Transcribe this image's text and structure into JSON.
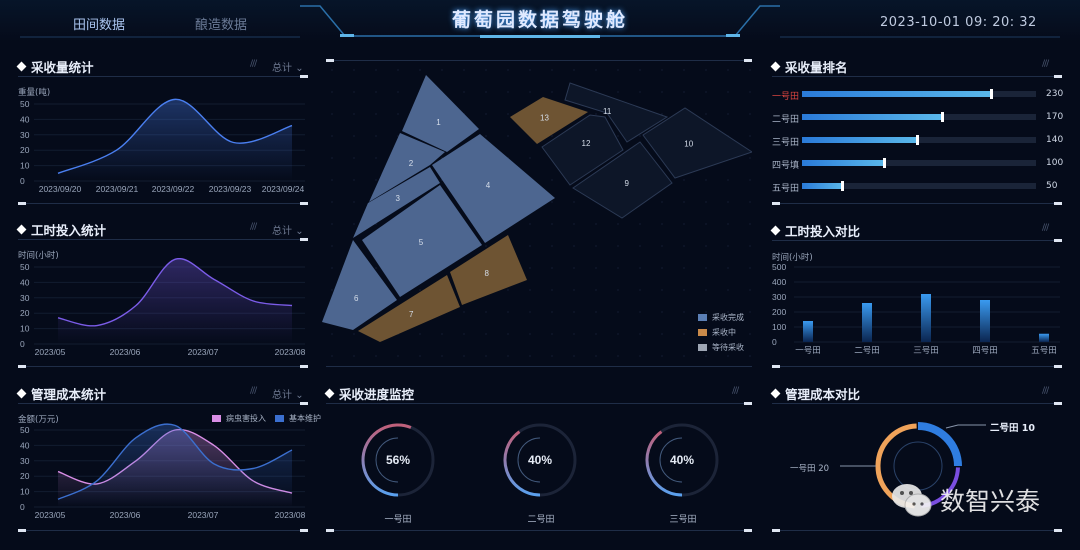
{
  "header": {
    "tabs": [
      "田间数据",
      "酿造数据"
    ],
    "title": "葡萄园数据驾驶舱",
    "datetime": "2023-10-01 09:  20:  32"
  },
  "left": {
    "harvest": {
      "title": "采收量统计",
      "dropdown": "总计",
      "chart_data": {
        "type": "area",
        "ylabel": "重量(吨)",
        "ylim": [
          0,
          50
        ],
        "yticks": [
          0,
          10,
          20,
          30,
          40,
          50
        ],
        "categories": [
          "2023/09/20",
          "2023/09/21",
          "2023/09/22",
          "2023/09/23",
          "2023/09/24"
        ],
        "values": [
          5,
          20,
          53,
          25,
          36
        ],
        "color": "#4a7ff0"
      }
    },
    "hours": {
      "title": "工时投入统计",
      "dropdown": "总计",
      "chart_data": {
        "type": "area",
        "ylabel": "时间(小时)",
        "ylim": [
          0,
          50
        ],
        "yticks": [
          0,
          10,
          20,
          30,
          40,
          50
        ],
        "xticks": [
          "2023/05",
          "2023/06",
          "2023/07",
          "2023/08"
        ],
        "values": [
          17,
          12,
          25,
          55,
          42,
          28,
          25
        ],
        "color": "#7b5ce8"
      }
    },
    "cost": {
      "title": "管理成本统计",
      "dropdown": "总计",
      "chart_data": {
        "type": "area",
        "ylabel": "金额(万元)",
        "ylim": [
          0,
          50
        ],
        "yticks": [
          0,
          10,
          20,
          30,
          40,
          50
        ],
        "xticks": [
          "2023/05",
          "2023/06",
          "2023/07",
          "2023/08"
        ],
        "legend": "top-right",
        "series": [
          {
            "name": "病虫害投入",
            "values": [
              23,
              15,
              30,
              50,
              40,
              17,
              9
            ],
            "color": "#d98ee6"
          },
          {
            "name": "基本维护",
            "values": [
              5,
              17,
              45,
              53,
              28,
              25,
              37
            ],
            "color": "#3b6fcf"
          }
        ]
      }
    }
  },
  "center": {
    "map": {
      "legend": [
        {
          "label": "采收完成",
          "color": "#5b7fb5"
        },
        {
          "label": "采收中",
          "color": "#c98a4a"
        },
        {
          "label": "等待采收",
          "color": "#9ea6b4"
        }
      ],
      "fields": [
        {
          "id": "1",
          "status": "done"
        },
        {
          "id": "2",
          "status": "done"
        },
        {
          "id": "3",
          "status": "done"
        },
        {
          "id": "4",
          "status": "done"
        },
        {
          "id": "5",
          "status": "done"
        },
        {
          "id": "6",
          "status": "done"
        },
        {
          "id": "7",
          "status": "progress"
        },
        {
          "id": "8",
          "status": "progress"
        },
        {
          "id": "9",
          "status": "waiting"
        },
        {
          "id": "10",
          "status": "waiting"
        },
        {
          "id": "11",
          "status": "waiting"
        },
        {
          "id": "12",
          "status": "waiting"
        },
        {
          "id": "13",
          "status": "progress"
        }
      ]
    },
    "progress": {
      "title": "采收进度监控",
      "gauges": [
        {
          "label": "一号田",
          "value": 56,
          "text": "56%"
        },
        {
          "label": "二号田",
          "value": 40,
          "text": "40%"
        },
        {
          "label": "三号田",
          "value": 40,
          "text": "40%"
        }
      ]
    }
  },
  "right": {
    "ranking": {
      "title": "采收量排名",
      "items": [
        {
          "label": "一号田",
          "value": 230,
          "highlight": "#d9443f"
        },
        {
          "label": "二号田",
          "value": 170
        },
        {
          "label": "三号田",
          "value": 140
        },
        {
          "label": "四号填",
          "value": 100
        },
        {
          "label": "五号田",
          "value": 50
        }
      ]
    },
    "hours_compare": {
      "title": "工时投入对比",
      "chart_data": {
        "type": "bar",
        "ylabel": "时间(小时)",
        "ylim": [
          0,
          500
        ],
        "yticks": [
          0,
          100,
          200,
          300,
          400,
          500
        ],
        "categories": [
          "一号田",
          "二号田",
          "三号田",
          "四号田",
          "五号田"
        ],
        "values": [
          140,
          260,
          320,
          280,
          55
        ]
      }
    },
    "cost_compare": {
      "title": "管理成本对比",
      "chart_data": {
        "type": "donut",
        "slices": [
          {
            "label": "一号田",
            "value": 20,
            "text": "一号田  20",
            "color": "#f0a35a"
          },
          {
            "label": "二号田",
            "value": 10,
            "text": "二号田   10",
            "color": "#2f7de0"
          }
        ]
      }
    }
  },
  "watermark": {
    "text": "数智兴泰",
    "icon": "wechat-icon"
  }
}
